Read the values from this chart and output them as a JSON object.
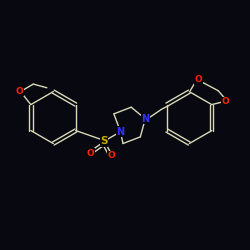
{
  "background_color": "#080810",
  "bond_color": "#d8d8b8",
  "atom_colors": {
    "N": "#3333ff",
    "O": "#ff2200",
    "S": "#ccaa00"
  },
  "figsize": [
    2.5,
    2.5
  ],
  "dpi": 100,
  "xlim": [
    0,
    10
  ],
  "ylim": [
    0,
    10
  ]
}
